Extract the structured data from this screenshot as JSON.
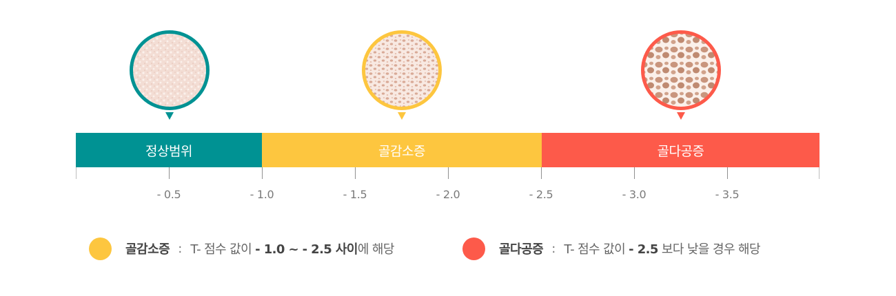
{
  "colors": {
    "normal": "#009293",
    "osteopenia": "#fdc63f",
    "osteoporosis": "#fd5a4a",
    "tick": "#8f8f8f"
  },
  "markers": [
    {
      "icon": "normal-bone-texture-icon",
      "color": "#009293"
    },
    {
      "icon": "osteopenia-bone-texture-icon",
      "color": "#fdc63f"
    },
    {
      "icon": "osteoporosis-bone-texture-icon",
      "color": "#fd5a4a"
    }
  ],
  "bar": {
    "segments": [
      {
        "label": "정상범위"
      },
      {
        "label": "골감소증"
      },
      {
        "label": "골다공증"
      }
    ]
  },
  "axis": {
    "ticks": [
      "- 0.5",
      "- 1.0",
      "- 1.5",
      "- 2.0",
      "- 2.5",
      "- 3.0",
      "- 3.5"
    ]
  },
  "legend": [
    {
      "name": "골감소증",
      "colon": ":",
      "text_pre": "T- 점수 값이 ",
      "text_bold": "- 1.0 ~ - 2.5 사이",
      "text_post": "에 해당"
    },
    {
      "name": "골다공증",
      "colon": ":",
      "text_pre": "T- 점수 값이 ",
      "text_bold": "- 2.5",
      "text_post": " 보다 낮을 경우 해당"
    }
  ]
}
